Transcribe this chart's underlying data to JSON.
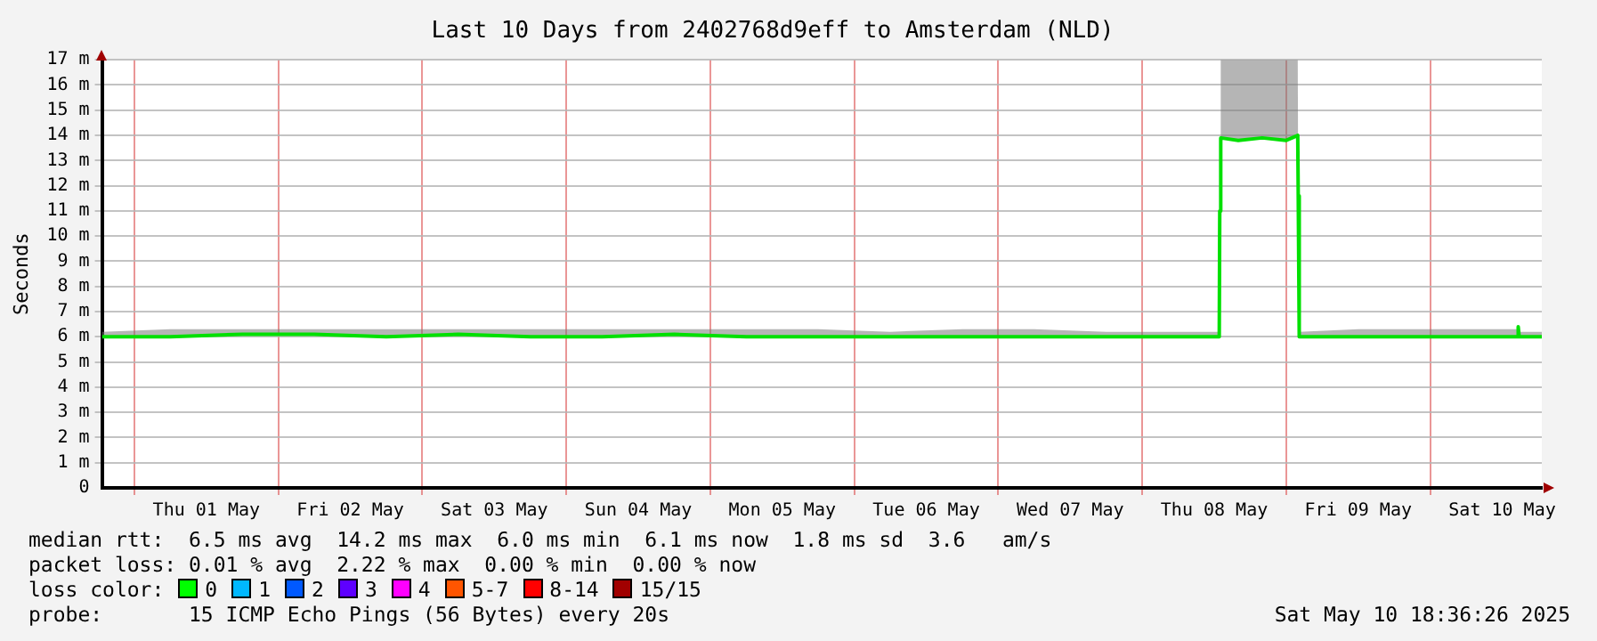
{
  "chart_data": {
    "type": "line",
    "title": "Last 10 Days from 2402768d9eff to Amsterdam (NLD)",
    "ylabel": "Seconds",
    "x": [
      "2025-04-30T18:36",
      "2025-05-01T06:00",
      "2025-05-01T18:00",
      "2025-05-02T06:00",
      "2025-05-02T18:00",
      "2025-05-03T06:00",
      "2025-05-03T18:00",
      "2025-05-04T06:00",
      "2025-05-04T18:00",
      "2025-05-05T06:00",
      "2025-05-05T18:00",
      "2025-05-06T06:00",
      "2025-05-06T18:00",
      "2025-05-07T06:00",
      "2025-05-07T18:00",
      "2025-05-08T06:00",
      "2025-05-08T12:50",
      "2025-05-08T12:55",
      "2025-05-08T13:05",
      "2025-05-08T16:00",
      "2025-05-08T20:00",
      "2025-05-09T00:00",
      "2025-05-09T01:55",
      "2025-05-09T02:00",
      "2025-05-09T02:10",
      "2025-05-09T12:00",
      "2025-05-10T00:00",
      "2025-05-10T14:30",
      "2025-05-10T14:40",
      "2025-05-10T14:50",
      "2025-05-10T18:36"
    ],
    "series": [
      {
        "color": "#00e000",
        "values": [
          6.0,
          6.0,
          6.1,
          6.1,
          6.0,
          6.1,
          6.0,
          6.0,
          6.1,
          6.0,
          6.0,
          6.0,
          6.0,
          6.0,
          6.0,
          6.0,
          6.0,
          11.0,
          13.9,
          13.8,
          13.9,
          13.8,
          14.0,
          11.6,
          6.0,
          6.0,
          6.0,
          6.0,
          6.4,
          6.0,
          6.0
        ],
        "lower": [
          6.0,
          6.0,
          6.1,
          6.1,
          6.0,
          6.1,
          6.0,
          6.0,
          6.1,
          6.0,
          6.0,
          6.0,
          6.0,
          6.0,
          6.0,
          6.0,
          6.0,
          11.0,
          13.9,
          13.8,
          13.9,
          13.8,
          14.0,
          11.6,
          6.0,
          6.0,
          6.0,
          6.0,
          6.4,
          6.0,
          6.0
        ],
        "upper": [
          6.2,
          6.3,
          6.3,
          6.3,
          6.3,
          6.3,
          6.3,
          6.3,
          6.3,
          6.3,
          6.3,
          6.2,
          6.3,
          6.3,
          6.2,
          6.2,
          6.2,
          11.0,
          17,
          17,
          17,
          17,
          17,
          11.6,
          6.2,
          6.3,
          6.3,
          6.3,
          6.4,
          6.2,
          6.2
        ]
      }
    ],
    "xlim": [
      "2025-04-30T18:36",
      "2025-05-10T18:36"
    ],
    "xticks": [
      {
        "value": "2025-05-01T00:00",
        "label": null
      },
      {
        "value": "2025-05-01T12:00",
        "label": "Thu 01 May"
      },
      {
        "value": "2025-05-02T00:00",
        "label": null
      },
      {
        "value": "2025-05-02T12:00",
        "label": "Fri 02 May"
      },
      {
        "value": "2025-05-03T00:00",
        "label": null
      },
      {
        "value": "2025-05-03T12:00",
        "label": "Sat 03 May"
      },
      {
        "value": "2025-05-04T00:00",
        "label": null
      },
      {
        "value": "2025-05-04T12:00",
        "label": "Sun 04 May"
      },
      {
        "value": "2025-05-05T00:00",
        "label": null
      },
      {
        "value": "2025-05-05T12:00",
        "label": "Mon 05 May"
      },
      {
        "value": "2025-05-06T00:00",
        "label": null
      },
      {
        "value": "2025-05-06T12:00",
        "label": "Tue 06 May"
      },
      {
        "value": "2025-05-07T00:00",
        "label": null
      },
      {
        "value": "2025-05-07T12:00",
        "label": "Wed 07 May"
      },
      {
        "value": "2025-05-08T00:00",
        "label": null
      },
      {
        "value": "2025-05-08T12:00",
        "label": "Thu 08 May"
      },
      {
        "value": "2025-05-09T00:00",
        "label": null
      },
      {
        "value": "2025-05-09T12:00",
        "label": "Fri 09 May"
      },
      {
        "value": "2025-05-10T00:00",
        "label": null
      },
      {
        "value": "2025-05-10T12:00",
        "label": "Sat 10 May"
      }
    ],
    "ylim": [
      0,
      17
    ],
    "yticks": [
      0,
      {
        "value": 1,
        "label": "1 m"
      },
      {
        "value": 2,
        "label": "2 m"
      },
      {
        "value": 3,
        "label": "3 m"
      },
      {
        "value": 4,
        "label": "4 m"
      },
      {
        "value": 5,
        "label": "5 m"
      },
      {
        "value": 6,
        "label": "6 m"
      },
      {
        "value": 7,
        "label": "7 m"
      },
      {
        "value": 8,
        "label": "8 m"
      },
      {
        "value": 9,
        "label": "9 m"
      },
      {
        "value": 10,
        "label": "10 m"
      },
      {
        "value": 11,
        "label": "11 m"
      },
      {
        "value": 12,
        "label": "12 m"
      },
      {
        "value": 13,
        "label": "13 m"
      },
      {
        "value": 14,
        "label": "14 m"
      },
      {
        "value": 15,
        "label": "15 m"
      },
      {
        "value": 16,
        "label": "16 m"
      },
      {
        "value": 17,
        "label": "17 m"
      }
    ],
    "grid": true,
    "annotations": [
      "median rtt:  6.5 ms avg  14.2 ms max  6.0 ms min  6.1 ms now  1.8 ms sd  3.6   am/s",
      "packet loss: 0.01 % avg  2.22 % max  0.00 % min  0.00 % now",
      "loss color:",
      "0",
      "1",
      "2",
      "3",
      "4",
      "5-7",
      "8-14",
      "15/15",
      "probe:       15 ICMP Echo Pings (56 Bytes) every 20s",
      "Sat May 10 18:36:26 2025"
    ]
  }
}
